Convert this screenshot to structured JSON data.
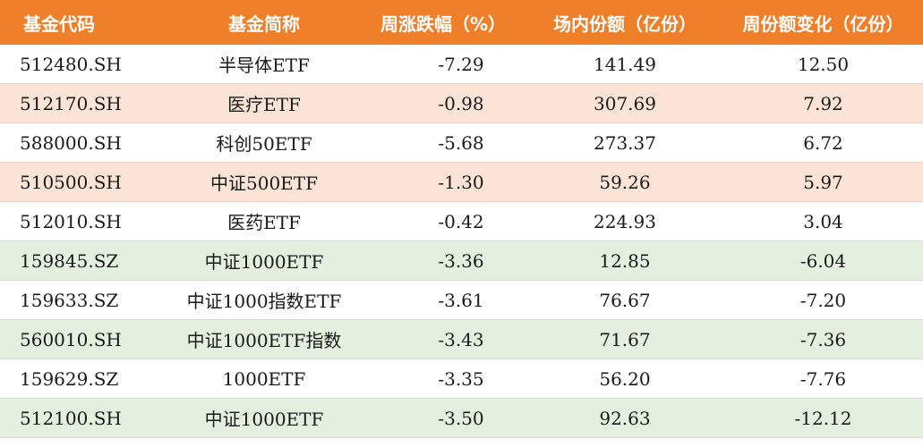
{
  "headers": [
    "基金代码",
    "基金简称",
    "周涨跌幅（%）",
    "场内份额（亿份）",
    "周份额变化（亿份）"
  ],
  "rows": [
    {
      "code": "512480.SH",
      "name": "半导体ETF",
      "weekly_change_pct": "-7.29",
      "shares": "141.49",
      "share_change": "12.50",
      "color": "white"
    },
    {
      "code": "512170.SH",
      "name": "医疗ETF",
      "weekly_change_pct": "-0.98",
      "shares": "307.69",
      "share_change": "7.92",
      "color": "peach"
    },
    {
      "code": "588000.SH",
      "name": "科创50ETF",
      "weekly_change_pct": "-5.68",
      "shares": "273.37",
      "share_change": "6.72",
      "color": "white"
    },
    {
      "code": "510500.SH",
      "name": "中证500ETF",
      "weekly_change_pct": "-1.30",
      "shares": "59.26",
      "share_change": "5.97",
      "color": "peach"
    },
    {
      "code": "512010.SH",
      "name": "医药ETF",
      "weekly_change_pct": "-0.42",
      "shares": "224.93",
      "share_change": "3.04",
      "color": "white"
    },
    {
      "code": "159845.SZ",
      "name": "中证1000ETF",
      "weekly_change_pct": "-3.36",
      "shares": "12.85",
      "share_change": "-6.04",
      "color": "green"
    },
    {
      "code": "159633.SZ",
      "name": "中证1000指数ETF",
      "weekly_change_pct": "-3.61",
      "shares": "76.67",
      "share_change": "-7.20",
      "color": "white"
    },
    {
      "code": "560010.SH",
      "name": "中证1000ETF指数",
      "weekly_change_pct": "-3.43",
      "shares": "71.67",
      "share_change": "-7.36",
      "color": "green"
    },
    {
      "code": "159629.SZ",
      "name": "1000ETF",
      "weekly_change_pct": "-3.35",
      "shares": "56.20",
      "share_change": "-7.76",
      "color": "white"
    },
    {
      "code": "512100.SH",
      "name": "中证1000ETF",
      "weekly_change_pct": "-3.50",
      "shares": "92.63",
      "share_change": "-12.12",
      "color": "green"
    }
  ],
  "colors": {
    "header_bg": "#f07f2a",
    "header_text": "#ffffff",
    "peach_row": "#fbe3d5",
    "green_row": "#e4efdf",
    "white_row": "#ffffff"
  }
}
